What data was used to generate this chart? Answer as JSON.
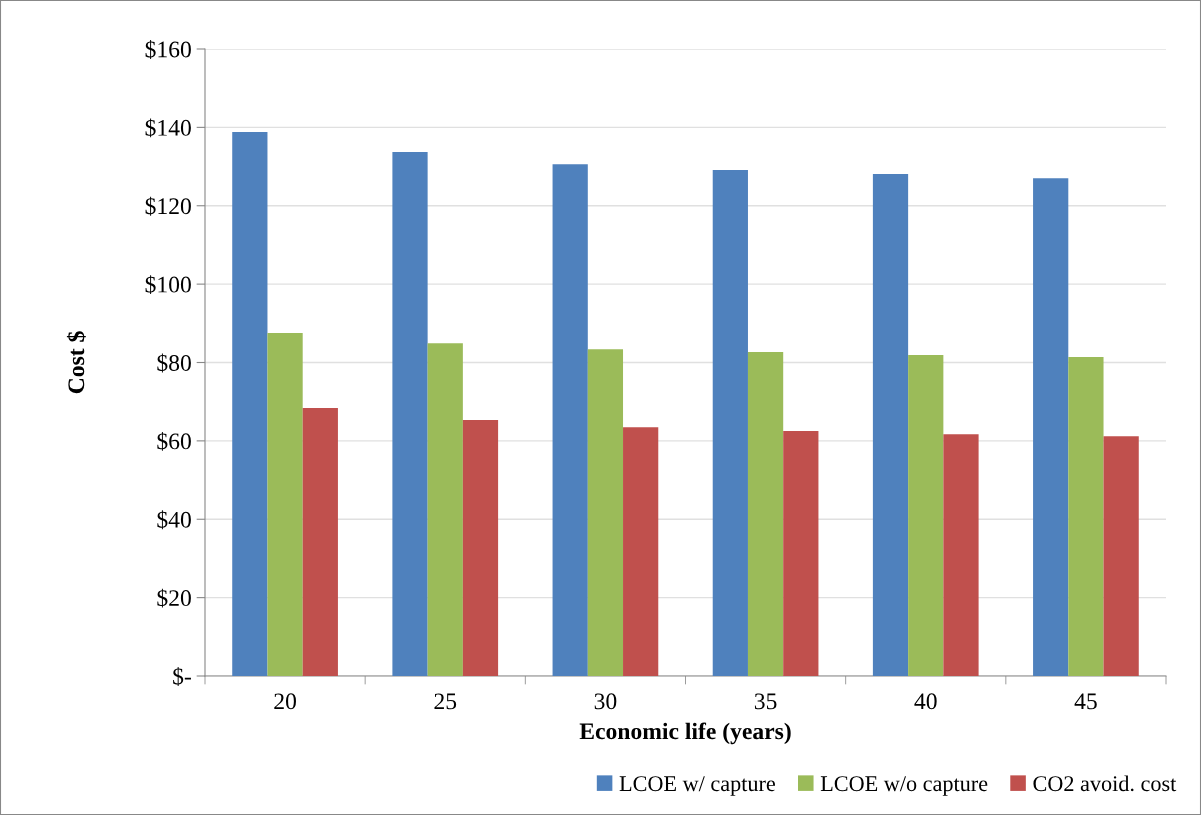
{
  "chart_data": {
    "type": "bar",
    "xlabel": "Economic life (years)",
    "ylabel": "Cost $",
    "categories": [
      "20",
      "25",
      "30",
      "35",
      "40",
      "45"
    ],
    "series": [
      {
        "name": "LCOE w/ capture",
        "color": "#4f81bd",
        "values": [
          138.8,
          133.7,
          130.6,
          129.1,
          128.1,
          127.0
        ]
      },
      {
        "name": "LCOE w/o capture",
        "color": "#9bbb59",
        "values": [
          87.5,
          84.9,
          83.4,
          82.7,
          81.9,
          81.4
        ]
      },
      {
        "name": "CO2 avoid. cost",
        "color": "#c0504d",
        "values": [
          68.4,
          65.3,
          63.5,
          62.5,
          61.7,
          61.2
        ]
      }
    ],
    "ylim": [
      0,
      160
    ],
    "yticks": [
      {
        "value": 0,
        "label": "$-"
      },
      {
        "value": 20,
        "label": "$20"
      },
      {
        "value": 40,
        "label": "$40"
      },
      {
        "value": 60,
        "label": "$60"
      },
      {
        "value": 80,
        "label": "$80"
      },
      {
        "value": 100,
        "label": "$100"
      },
      {
        "value": 120,
        "label": "$120"
      },
      {
        "value": 140,
        "label": "$140"
      },
      {
        "value": 160,
        "label": "$160"
      }
    ],
    "grid": "y",
    "legend": "bottom right"
  }
}
